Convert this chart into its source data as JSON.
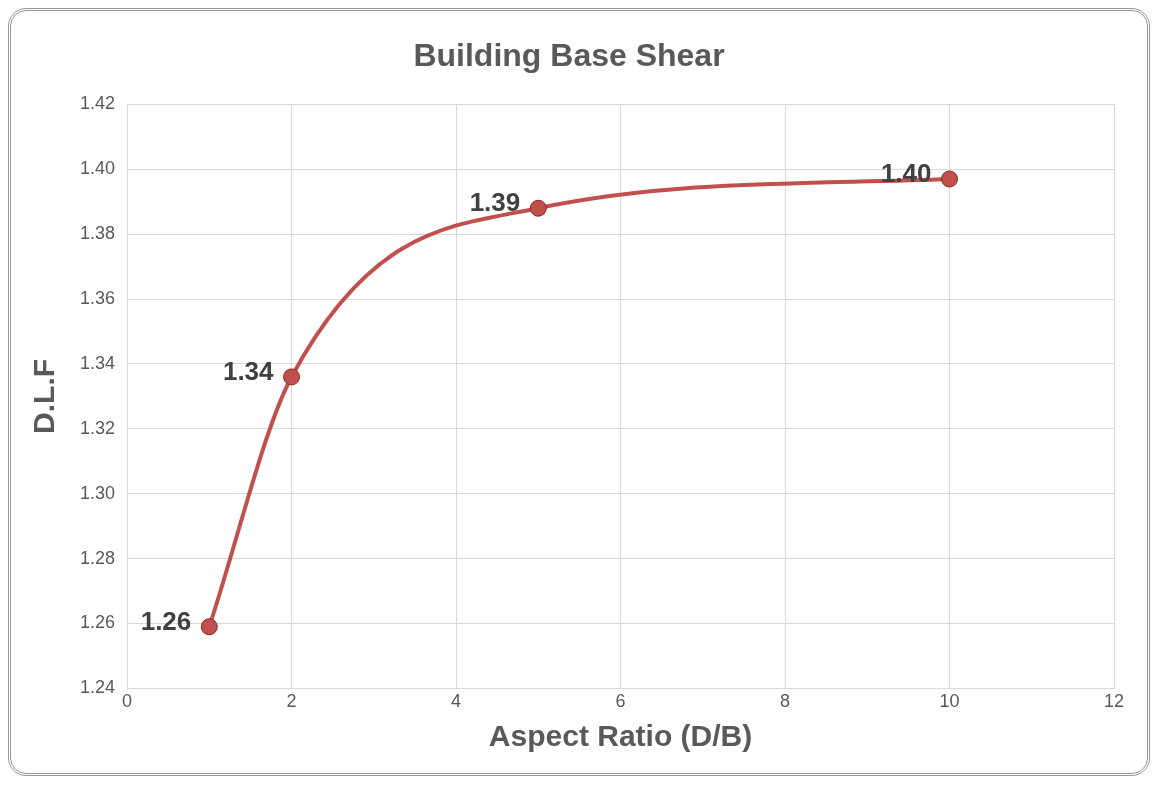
{
  "chart_data": {
    "type": "line",
    "title": "Building Base Shear",
    "xlabel": "Aspect Ratio (D/B)",
    "ylabel": "D.L.F",
    "x": [
      1,
      2,
      5,
      10
    ],
    "series": [
      {
        "color": "#c0504d",
        "values": [
          1.259,
          1.336,
          1.388,
          1.397
        ],
        "value_labels": [
          "1.26",
          "1.34",
          "1.39",
          "1.40"
        ]
      }
    ],
    "xlim": [
      0,
      12
    ],
    "xticks": [
      0,
      2,
      4,
      6,
      8,
      10,
      12
    ],
    "ylim": [
      1.24,
      1.42
    ],
    "yticks": [
      {
        "value": 1.24,
        "label": "1.24"
      },
      {
        "value": 1.26,
        "label": "1.26"
      },
      {
        "value": 1.28,
        "label": "1.28"
      },
      {
        "value": 1.3,
        "label": "1.30"
      },
      {
        "value": 1.32,
        "label": "1.32"
      },
      {
        "value": 1.34,
        "label": "1.34"
      },
      {
        "value": 1.36,
        "label": "1.36"
      },
      {
        "value": 1.38,
        "label": "1.38"
      },
      {
        "value": 1.4,
        "label": "1.40"
      },
      {
        "value": 1.42,
        "label": "1.42"
      }
    ],
    "grid": true,
    "legend": false,
    "marker": "circle",
    "line_style": "solid"
  }
}
